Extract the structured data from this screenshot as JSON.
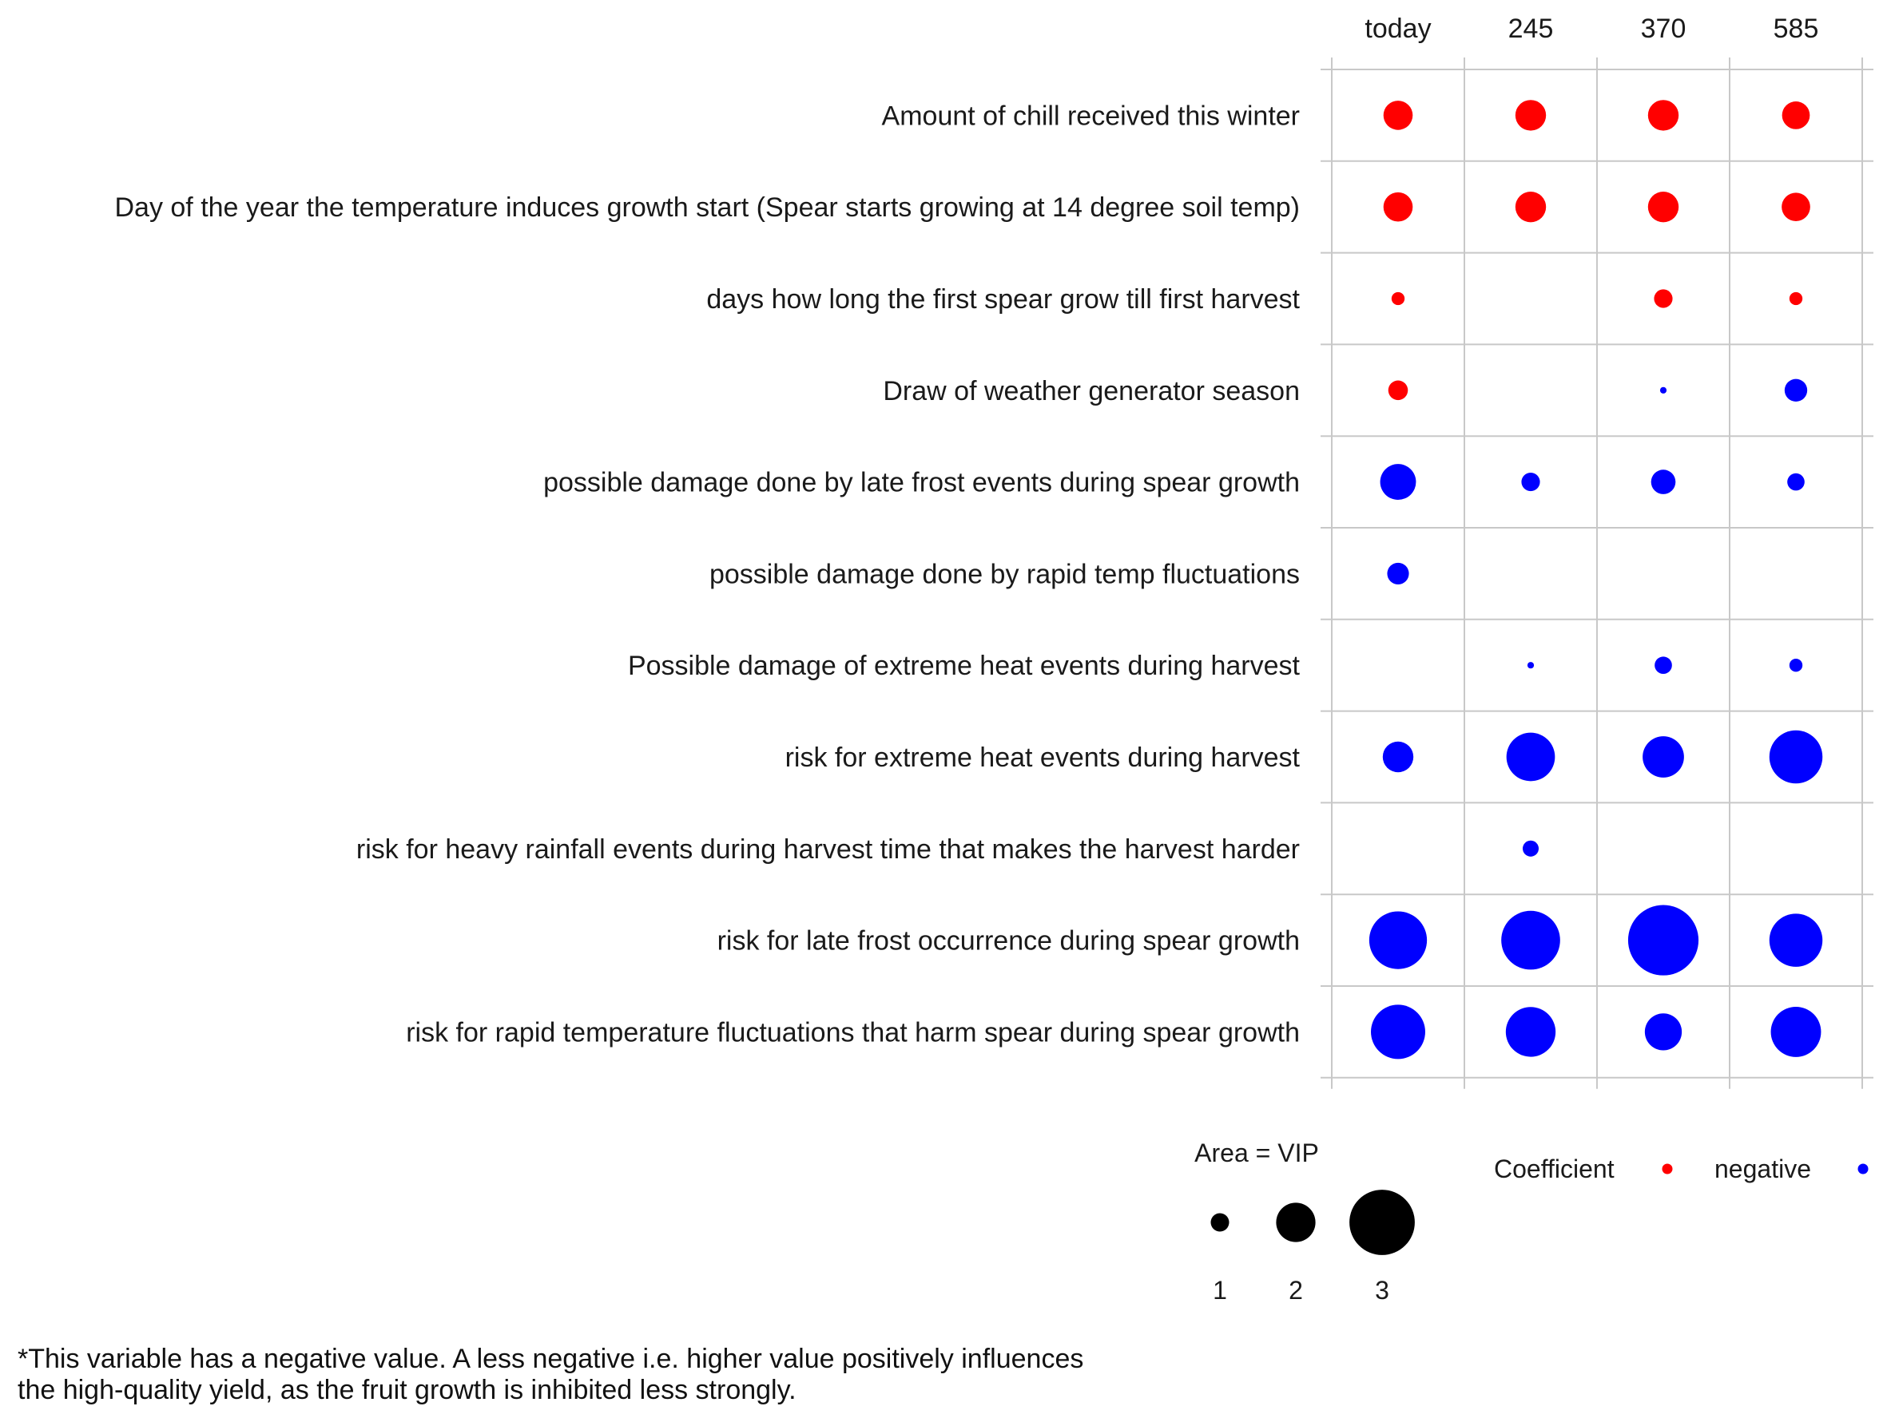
{
  "chart_data": {
    "type": "scatter",
    "columns": [
      "today",
      "245",
      "370",
      "585"
    ],
    "rows": [
      "Amount of chill received this winter",
      "Day of the year the temperature induces growth start (Spear starts growing at 14 degree soil temp)",
      "days how long the first spear grow till first harvest",
      "Draw of weather generator season",
      "possible damage done by late frost events during spear growth",
      "possible damage done by rapid temp fluctuations",
      "Possible damage of extreme heat events during harvest",
      "risk for extreme heat events during harvest",
      "risk for heavy rainfall events during harvest time that makes the harvest harder",
      "risk for late frost occurrence during spear growth",
      "risk for rapid temperature fluctuations that harm spear during spear growth"
    ],
    "points": [
      {
        "row": 0,
        "col": 0,
        "vip": 1.0,
        "sign": "positive"
      },
      {
        "row": 0,
        "col": 1,
        "vip": 1.1,
        "sign": "positive"
      },
      {
        "row": 0,
        "col": 2,
        "vip": 1.1,
        "sign": "positive"
      },
      {
        "row": 0,
        "col": 3,
        "vip": 0.9,
        "sign": "positive"
      },
      {
        "row": 1,
        "col": 0,
        "vip": 1.0,
        "sign": "positive"
      },
      {
        "row": 1,
        "col": 1,
        "vip": 1.1,
        "sign": "positive"
      },
      {
        "row": 1,
        "col": 2,
        "vip": 1.1,
        "sign": "positive"
      },
      {
        "row": 1,
        "col": 3,
        "vip": 0.95,
        "sign": "positive"
      },
      {
        "row": 2,
        "col": 0,
        "vip": 0.2,
        "sign": "positive"
      },
      {
        "row": 2,
        "col": 2,
        "vip": 0.4,
        "sign": "positive"
      },
      {
        "row": 2,
        "col": 3,
        "vip": 0.2,
        "sign": "positive"
      },
      {
        "row": 3,
        "col": 0,
        "vip": 0.45,
        "sign": "positive"
      },
      {
        "row": 3,
        "col": 2,
        "vip": 0.05,
        "sign": "negative"
      },
      {
        "row": 3,
        "col": 3,
        "vip": 0.6,
        "sign": "negative"
      },
      {
        "row": 4,
        "col": 0,
        "vip": 1.5,
        "sign": "negative"
      },
      {
        "row": 4,
        "col": 1,
        "vip": 0.4,
        "sign": "negative"
      },
      {
        "row": 4,
        "col": 2,
        "vip": 0.7,
        "sign": "negative"
      },
      {
        "row": 4,
        "col": 3,
        "vip": 0.35,
        "sign": "negative"
      },
      {
        "row": 5,
        "col": 0,
        "vip": 0.55,
        "sign": "negative"
      },
      {
        "row": 6,
        "col": 1,
        "vip": 0.05,
        "sign": "negative"
      },
      {
        "row": 6,
        "col": 2,
        "vip": 0.35,
        "sign": "negative"
      },
      {
        "row": 6,
        "col": 3,
        "vip": 0.2,
        "sign": "negative"
      },
      {
        "row": 7,
        "col": 0,
        "vip": 1.1,
        "sign": "negative"
      },
      {
        "row": 7,
        "col": 1,
        "vip": 2.75,
        "sign": "negative"
      },
      {
        "row": 7,
        "col": 2,
        "vip": 2.0,
        "sign": "negative"
      },
      {
        "row": 7,
        "col": 3,
        "vip": 3.3,
        "sign": "negative"
      },
      {
        "row": 8,
        "col": 1,
        "vip": 0.3,
        "sign": "negative"
      },
      {
        "row": 9,
        "col": 0,
        "vip": 3.9,
        "sign": "negative"
      },
      {
        "row": 9,
        "col": 1,
        "vip": 4.05,
        "sign": "negative"
      },
      {
        "row": 9,
        "col": 2,
        "vip": 5.8,
        "sign": "negative"
      },
      {
        "row": 9,
        "col": 3,
        "vip": 3.3,
        "sign": "negative"
      },
      {
        "row": 10,
        "col": 0,
        "vip": 3.45,
        "sign": "negative"
      },
      {
        "row": 10,
        "col": 1,
        "vip": 2.9,
        "sign": "negative"
      },
      {
        "row": 10,
        "col": 2,
        "vip": 1.6,
        "sign": "negative"
      },
      {
        "row": 10,
        "col": 3,
        "vip": 2.95,
        "sign": "negative"
      }
    ],
    "size_legend": {
      "title": "Area = VIP",
      "values": [
        1,
        2,
        3
      ],
      "labels": [
        "1",
        "2",
        "3"
      ]
    },
    "color_legend": {
      "title": "Coefficient",
      "entries": [
        {
          "key": "positive",
          "label": "",
          "color": "#ff0000"
        },
        {
          "key": "negative",
          "label": "negative",
          "color": "#0000ff"
        }
      ]
    },
    "colors": {
      "positive": "#ff0000",
      "negative": "#0000ff",
      "legend_dot": "#000000",
      "grid": "#c8c8c8"
    },
    "grid": true
  },
  "footnote": {
    "line1": "*This variable has a negative value. A less negative i.e. higher value positively influences",
    "line2": "the high-quality yield, as the fruit growth is inhibited less strongly."
  }
}
